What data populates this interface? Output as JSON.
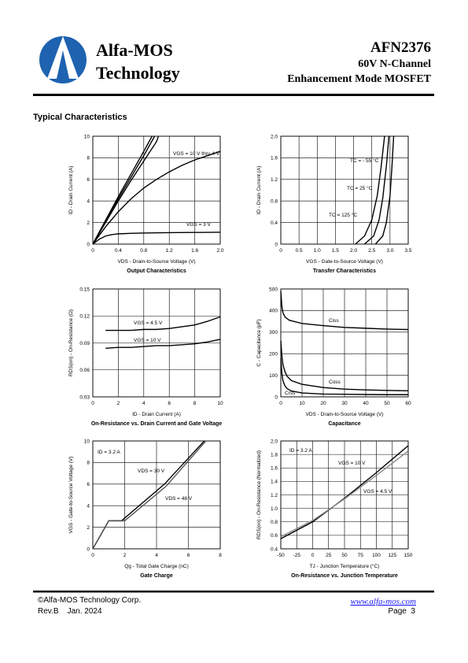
{
  "header": {
    "company_line1": "Alfa-MOS",
    "company_line2": "Technology",
    "part_number": "AFN2376",
    "subtitle1": "60V  N-Channel",
    "subtitle2": "Enhancement Mode MOSFET"
  },
  "section_title": "Typical Characteristics",
  "chart_data": [
    {
      "type": "line",
      "title": "Output Characteristics",
      "xlabel": "VDS - Drain-to-Source Voltage (V)",
      "ylabel": "ID - Drain Current (A)",
      "xlim": [
        0,
        2
      ],
      "ylim": [
        0,
        10
      ],
      "xticks": [
        0,
        0.4,
        0.8,
        1.2,
        1.6,
        {
          "value": 2,
          "label": "2.0"
        }
      ],
      "yticks": [
        0,
        2,
        4,
        6,
        8,
        10
      ],
      "grid": true,
      "annotations": [
        "VGS = 10 V thru 4 V",
        "VGS = 3 V"
      ],
      "series": [
        {
          "color": "#000000",
          "x": [
            0,
            0.2,
            0.4,
            0.6,
            0.8,
            0.93
          ],
          "values": [
            0,
            2.2,
            4.4,
            6.5,
            8.6,
            10
          ]
        },
        {
          "color": "#000000",
          "x": [
            0,
            0.2,
            0.4,
            0.6,
            0.8,
            0.97
          ],
          "values": [
            0,
            2.1,
            4.2,
            6.2,
            8.2,
            10
          ]
        },
        {
          "color": "#000000",
          "x": [
            0,
            0.2,
            0.4,
            0.6,
            0.8,
            1.0,
            1.03
          ],
          "values": [
            0,
            2.0,
            4.0,
            5.9,
            7.7,
            9.5,
            10
          ]
        },
        {
          "color": "#000000",
          "x": [
            0,
            0.2,
            0.4,
            0.6,
            0.8,
            1.0,
            1.2,
            1.4,
            1.6,
            1.8,
            2.0
          ],
          "values": [
            0,
            1.6,
            3.0,
            4.2,
            5.2,
            6.0,
            6.7,
            7.3,
            7.8,
            8.2,
            8.6
          ]
        },
        {
          "color": "#000000",
          "x": [
            0,
            0.1,
            0.2,
            0.3,
            0.4,
            0.6,
            0.8,
            1.2,
            1.6,
            2.0
          ],
          "values": [
            0,
            0.45,
            0.75,
            0.88,
            0.95,
            1.0,
            1.03,
            1.06,
            1.08,
            1.1
          ]
        }
      ]
    },
    {
      "type": "line",
      "title": "Transfer Characteristics",
      "xlabel": "VGS - Gate-to-Source Voltage (V)",
      "ylabel": "ID - Drain Current (A)",
      "xlim": [
        0,
        3.5
      ],
      "ylim": [
        0,
        2
      ],
      "xticks": [
        0,
        0.5,
        {
          "value": 1,
          "label": "1.0"
        },
        1.5,
        {
          "value": 2,
          "label": "2.0"
        },
        2.5,
        {
          "value": 3,
          "label": "3.0"
        },
        3.5
      ],
      "yticks": [
        0,
        0.4,
        0.8,
        1.2,
        1.6,
        {
          "value": 2,
          "label": "2.0"
        }
      ],
      "grid": true,
      "annotations": [
        "TC = - 55 °C",
        "TC = 25 °C",
        "TC = 125 °C"
      ],
      "series": [
        {
          "color": "#000000",
          "x": [
            2.6,
            2.8,
            2.9,
            3.0,
            3.05,
            3.1
          ],
          "values": [
            0,
            0.15,
            0.4,
            0.9,
            1.4,
            2.0
          ]
        },
        {
          "color": "#000000",
          "x": [
            2.3,
            2.55,
            2.7,
            2.8,
            2.9,
            2.97
          ],
          "values": [
            0,
            0.15,
            0.45,
            0.85,
            1.45,
            2.0
          ]
        },
        {
          "color": "#000000",
          "x": [
            2.05,
            2.3,
            2.5,
            2.65,
            2.75,
            2.85
          ],
          "values": [
            0,
            0.15,
            0.45,
            0.9,
            1.4,
            2.0
          ]
        }
      ]
    },
    {
      "type": "line",
      "title": "On-Resistance vs. Drain Current and Gate Voltage",
      "xlabel": "ID - Drain Current (A)",
      "ylabel": "RDS(on) - On-Resistance (Ω)",
      "xlim": [
        0,
        10
      ],
      "ylim": [
        0.03,
        0.15
      ],
      "xticks": [
        0,
        2,
        4,
        6,
        8,
        10
      ],
      "yticks": [
        0.03,
        0.06,
        0.09,
        0.12,
        0.15
      ],
      "grid": true,
      "annotations": [
        "VGS = 4.5 V",
        "VGS = 10 V"
      ],
      "series": [
        {
          "color": "#000000",
          "x": [
            1,
            2,
            3,
            4,
            5,
            6,
            7,
            8,
            9,
            10
          ],
          "values": [
            0.104,
            0.104,
            0.104,
            0.105,
            0.105,
            0.106,
            0.108,
            0.11,
            0.114,
            0.119
          ]
        },
        {
          "color": "#000000",
          "x": [
            1,
            2,
            3,
            4,
            5,
            6,
            7,
            8,
            9,
            10
          ],
          "values": [
            0.084,
            0.085,
            0.085,
            0.086,
            0.087,
            0.087,
            0.088,
            0.089,
            0.091,
            0.094
          ]
        }
      ]
    },
    {
      "type": "line",
      "title": "Capacitance",
      "xlabel": "VDS - Drain-to-Source Voltage (V)",
      "ylabel": "C - Capacitance (pF)",
      "xlim": [
        0,
        60
      ],
      "ylim": [
        0,
        500
      ],
      "xticks": [
        0,
        10,
        20,
        30,
        40,
        50,
        60
      ],
      "yticks": [
        0,
        100,
        200,
        300,
        400,
        500
      ],
      "grid": true,
      "annotations": [
        "Ciss",
        "Coss",
        "Crss"
      ],
      "series": [
        {
          "color": "#000000",
          "x": [
            0,
            0.5,
            1,
            2,
            4,
            10,
            20,
            30,
            40,
            50,
            60
          ],
          "values": [
            490,
            420,
            390,
            370,
            355,
            340,
            330,
            322,
            318,
            314,
            312
          ]
        },
        {
          "color": "#000000",
          "x": [
            0,
            0.5,
            1,
            2,
            3,
            5,
            10,
            20,
            30,
            40,
            50,
            60
          ],
          "values": [
            260,
            190,
            150,
            115,
            95,
            75,
            58,
            43,
            36,
            32,
            30,
            28
          ]
        },
        {
          "color": "#000000",
          "x": [
            0,
            0.5,
            1,
            2,
            3,
            5,
            10,
            20,
            30,
            40,
            50,
            60
          ],
          "values": [
            180,
            110,
            75,
            50,
            38,
            27,
            18,
            13,
            12,
            11,
            10,
            10
          ]
        }
      ]
    },
    {
      "type": "line",
      "title": "Gate Charge",
      "xlabel": "Qg - Total Gate Charge (nC)",
      "ylabel": "VGS - Gate-to-Source Voltage (V)",
      "xlim": [
        0,
        8
      ],
      "ylim": [
        0,
        10
      ],
      "xticks": [
        0,
        2,
        4,
        6,
        8
      ],
      "yticks": [
        0,
        2,
        4,
        6,
        8,
        10
      ],
      "grid": true,
      "annotations": [
        "ID = 3.2 A",
        "VDS = 30 V",
        "VDS = 48 V"
      ],
      "series": [
        {
          "color": "#000000",
          "x": [
            0,
            1,
            1.8,
            4.5,
            7
          ],
          "values": [
            0,
            2.6,
            2.6,
            6,
            10
          ]
        },
        {
          "color": "#555555",
          "x": [
            0,
            1,
            2,
            4.6,
            7.1
          ],
          "values": [
            0,
            2.6,
            2.6,
            5.8,
            10
          ]
        }
      ]
    },
    {
      "type": "line",
      "title": "On-Resistance vs. Junction Temperature",
      "xlabel": "TJ - Junction Temperature (°C)",
      "ylabel": "RDS(on) - On-Resistance (Normalized)",
      "xlim": [
        -50,
        150
      ],
      "ylim": [
        0.4,
        2
      ],
      "xticks": [
        -50,
        -25,
        0,
        25,
        50,
        75,
        100,
        125,
        150
      ],
      "yticks": [
        0.4,
        0.6,
        0.8,
        {
          "value": 1,
          "label": "1.0"
        },
        1.2,
        1.4,
        1.6,
        1.8,
        {
          "value": 2,
          "label": "2.0"
        }
      ],
      "grid": true,
      "annotations": [
        "ID = 3.2 A",
        "VGS = 10 V",
        "VGS = 4.5 V"
      ],
      "series": [
        {
          "color": "#000000",
          "x": [
            -50,
            0,
            50,
            100,
            150
          ],
          "values": [
            0.55,
            0.8,
            1.15,
            1.53,
            1.93
          ]
        },
        {
          "color": "#888888",
          "x": [
            -50,
            0,
            50,
            100,
            150
          ],
          "values": [
            0.58,
            0.82,
            1.14,
            1.49,
            1.85
          ]
        }
      ]
    }
  ],
  "footer": {
    "copyright": "©Alfa-MOS Technology Corp.",
    "revision": "Rev.B    Jan. 2024",
    "website": "www.alfa-mos.com",
    "page": "Page  3"
  }
}
